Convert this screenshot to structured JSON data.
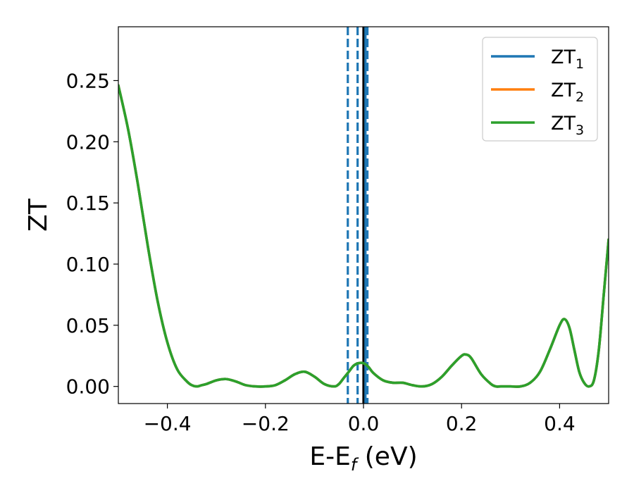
{
  "chart_data": {
    "type": "line",
    "xlabel": "E-E",
    "xlabel_sub": "f",
    "xlabel_unit": " (eV)",
    "ylabel": "ZT",
    "xlim": [
      -0.5,
      0.5
    ],
    "ylim": [
      -0.014,
      0.294
    ],
    "xticks": [
      -0.4,
      -0.2,
      0.0,
      0.2,
      0.4
    ],
    "xtick_labels": [
      "−0.4",
      "−0.2",
      "0.0",
      "0.2",
      "0.4"
    ],
    "yticks": [
      0.0,
      0.05,
      0.1,
      0.15,
      0.2,
      0.25
    ],
    "ytick_labels": [
      "0.00",
      "0.05",
      "0.10",
      "0.15",
      "0.20",
      "0.25"
    ],
    "grid": false,
    "legend": "top-right",
    "series": [
      {
        "name": "ZT",
        "sub": "1",
        "color": "#1f77b4",
        "x": [
          -0.5,
          -0.48,
          -0.46,
          -0.44,
          -0.42,
          -0.4,
          -0.38,
          -0.36,
          -0.35,
          -0.34,
          -0.33,
          -0.32,
          -0.3,
          -0.28,
          -0.26,
          -0.24,
          -0.22,
          -0.2,
          -0.18,
          -0.16,
          -0.14,
          -0.12,
          -0.1,
          -0.08,
          -0.06,
          -0.05,
          -0.04,
          -0.03,
          -0.02,
          -0.01,
          0.0,
          0.01,
          0.02,
          0.04,
          0.06,
          0.08,
          0.1,
          0.12,
          0.14,
          0.16,
          0.18,
          0.2,
          0.21,
          0.22,
          0.24,
          0.26,
          0.27,
          0.28,
          0.3,
          0.32,
          0.34,
          0.36,
          0.38,
          0.4,
          0.41,
          0.42,
          0.43,
          0.44,
          0.45,
          0.46,
          0.47,
          0.48,
          0.49,
          0.5
        ],
        "y": [
          0.246,
          0.21,
          0.165,
          0.115,
          0.07,
          0.036,
          0.014,
          0.004,
          0.001,
          0.0,
          0.001,
          0.002,
          0.005,
          0.006,
          0.004,
          0.001,
          0.0,
          0.0,
          0.001,
          0.005,
          0.01,
          0.012,
          0.008,
          0.002,
          0.0,
          0.002,
          0.007,
          0.012,
          0.017,
          0.019,
          0.019,
          0.016,
          0.011,
          0.005,
          0.003,
          0.003,
          0.001,
          0.0,
          0.002,
          0.008,
          0.017,
          0.025,
          0.026,
          0.023,
          0.01,
          0.002,
          0.0,
          0.0,
          0.0,
          0.0,
          0.003,
          0.012,
          0.03,
          0.05,
          0.055,
          0.048,
          0.03,
          0.012,
          0.003,
          0.0,
          0.005,
          0.03,
          0.075,
          0.12
        ]
      },
      {
        "name": "ZT",
        "sub": "2",
        "color": "#ff7f0e",
        "x": [
          -0.5,
          -0.48,
          -0.46,
          -0.44,
          -0.42,
          -0.4,
          -0.38,
          -0.36,
          -0.35,
          -0.34,
          -0.33,
          -0.32,
          -0.3,
          -0.28,
          -0.26,
          -0.24,
          -0.22,
          -0.2,
          -0.18,
          -0.16,
          -0.14,
          -0.12,
          -0.1,
          -0.08,
          -0.06,
          -0.05,
          -0.04,
          -0.03,
          -0.02,
          -0.01,
          0.0,
          0.01,
          0.02,
          0.04,
          0.06,
          0.08,
          0.1,
          0.12,
          0.14,
          0.16,
          0.18,
          0.2,
          0.21,
          0.22,
          0.24,
          0.26,
          0.27,
          0.28,
          0.3,
          0.32,
          0.34,
          0.36,
          0.38,
          0.4,
          0.41,
          0.42,
          0.43,
          0.44,
          0.45,
          0.46,
          0.47,
          0.48,
          0.49,
          0.5
        ],
        "y": [
          0.246,
          0.21,
          0.165,
          0.115,
          0.07,
          0.036,
          0.014,
          0.004,
          0.001,
          0.0,
          0.001,
          0.002,
          0.005,
          0.006,
          0.004,
          0.001,
          0.0,
          0.0,
          0.001,
          0.005,
          0.01,
          0.012,
          0.008,
          0.002,
          0.0,
          0.002,
          0.007,
          0.012,
          0.017,
          0.019,
          0.019,
          0.016,
          0.011,
          0.005,
          0.003,
          0.003,
          0.001,
          0.0,
          0.002,
          0.008,
          0.017,
          0.025,
          0.026,
          0.023,
          0.01,
          0.002,
          0.0,
          0.0,
          0.0,
          0.0,
          0.003,
          0.012,
          0.03,
          0.05,
          0.055,
          0.048,
          0.03,
          0.012,
          0.003,
          0.0,
          0.005,
          0.03,
          0.075,
          0.12
        ]
      },
      {
        "name": "ZT",
        "sub": "3",
        "color": "#2ca02c",
        "x": [
          -0.5,
          -0.48,
          -0.46,
          -0.44,
          -0.42,
          -0.4,
          -0.38,
          -0.36,
          -0.35,
          -0.34,
          -0.33,
          -0.32,
          -0.3,
          -0.28,
          -0.26,
          -0.24,
          -0.22,
          -0.2,
          -0.18,
          -0.16,
          -0.14,
          -0.12,
          -0.1,
          -0.08,
          -0.06,
          -0.05,
          -0.04,
          -0.03,
          -0.02,
          -0.01,
          0.0,
          0.01,
          0.02,
          0.04,
          0.06,
          0.08,
          0.1,
          0.12,
          0.14,
          0.16,
          0.18,
          0.2,
          0.21,
          0.22,
          0.24,
          0.26,
          0.27,
          0.28,
          0.3,
          0.32,
          0.34,
          0.36,
          0.38,
          0.4,
          0.41,
          0.42,
          0.43,
          0.44,
          0.45,
          0.46,
          0.47,
          0.48,
          0.49,
          0.5
        ],
        "y": [
          0.246,
          0.21,
          0.165,
          0.115,
          0.07,
          0.036,
          0.014,
          0.004,
          0.001,
          0.0,
          0.001,
          0.002,
          0.005,
          0.006,
          0.004,
          0.001,
          0.0,
          0.0,
          0.001,
          0.005,
          0.01,
          0.012,
          0.008,
          0.002,
          0.0,
          0.002,
          0.007,
          0.012,
          0.017,
          0.019,
          0.019,
          0.016,
          0.011,
          0.005,
          0.003,
          0.003,
          0.001,
          0.0,
          0.002,
          0.008,
          0.017,
          0.025,
          0.026,
          0.023,
          0.01,
          0.002,
          0.0,
          0.0,
          0.0,
          0.0,
          0.003,
          0.012,
          0.03,
          0.05,
          0.055,
          0.048,
          0.03,
          0.012,
          0.003,
          0.0,
          0.005,
          0.03,
          0.075,
          0.12
        ]
      }
    ],
    "vlines": [
      {
        "x": -0.032,
        "color": "#1f77b4",
        "style": "dashed"
      },
      {
        "x": -0.012,
        "color": "#1f77b4",
        "style": "dashed"
      },
      {
        "x": 0.0,
        "color": "#000000",
        "style": "solid"
      },
      {
        "x": 0.004,
        "color": "#1f77b4",
        "style": "solid"
      },
      {
        "x": 0.008,
        "color": "#1f77b4",
        "style": "dashed"
      }
    ]
  }
}
